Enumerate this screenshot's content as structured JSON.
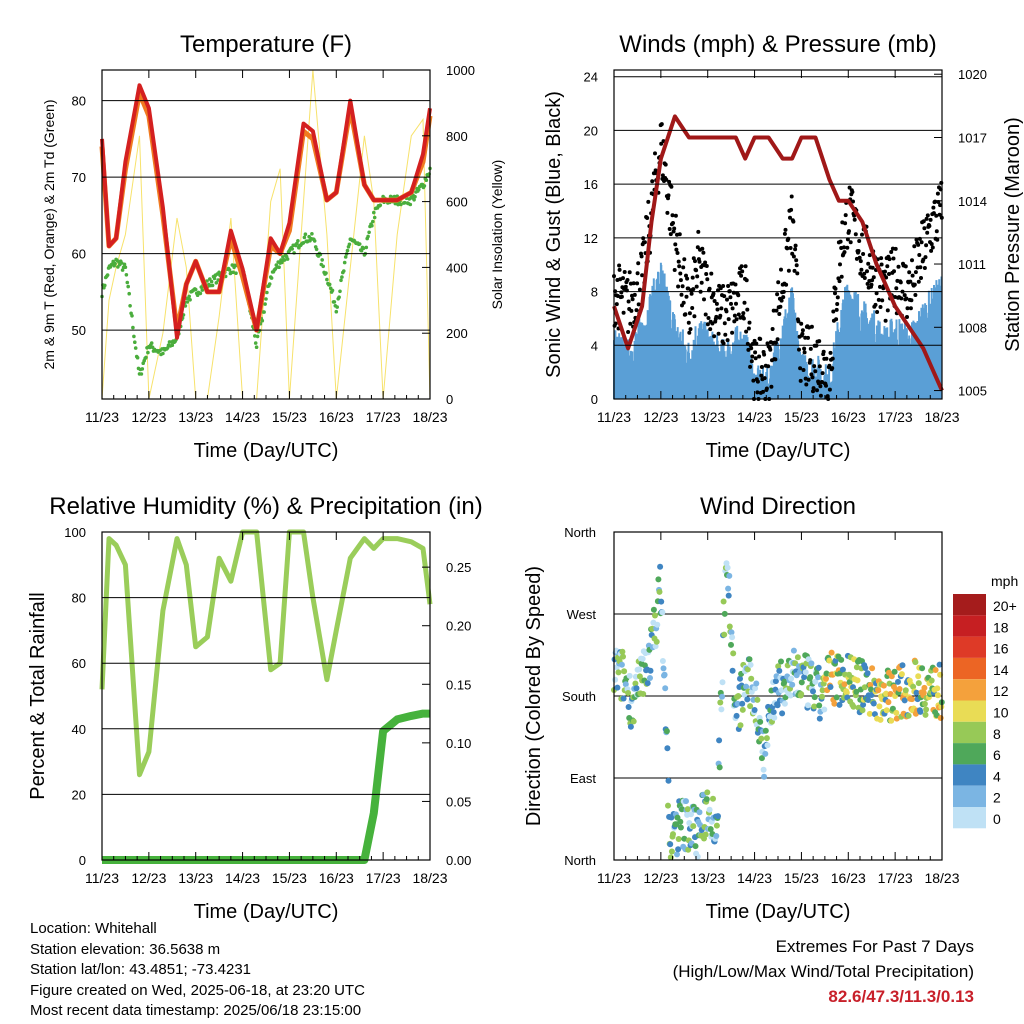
{
  "x_ticks": [
    "11/23",
    "12/23",
    "13/23",
    "14/23",
    "15/23",
    "16/23",
    "17/23",
    "18/23"
  ],
  "x_axis_label": "Time (Day/UTC)",
  "colors": {
    "temp_2m": "#d42020",
    "temp_9m": "#f07a20",
    "dewpoint": "#4aad3c",
    "insolation": "#f7e26b",
    "wind": "#5a9fd6",
    "gust": "#000000",
    "pressure": "#a01818",
    "rh": "#9acd5a",
    "precip": "#46b23c"
  },
  "panels": {
    "temperature": {
      "title": "Temperature (F)",
      "ylabel_left": "2m & 9m T (Red, Orange) & 2m Td (Green)",
      "ylabel_right": "Solar Insolation (Yellow)"
    },
    "winds": {
      "title": "Winds (mph) & Pressure (mb)",
      "ylabel_left": "Sonic Wind & Gust (Blue, Black)",
      "ylabel_right": "Station Pressure (Maroon)"
    },
    "humidity": {
      "title": "Relative Humidity (%) & Precipitation (in)",
      "ylabel_left": "Percent & Total Rainfall"
    },
    "direction": {
      "title": "Wind Direction",
      "ylabel_left": "Direction (Colored By Speed)",
      "legend_unit": "mph",
      "legend_labels": [
        "20+",
        "18",
        "16",
        "14",
        "12",
        "10",
        "8",
        "6",
        "4",
        "2",
        "0"
      ],
      "legend_colors": [
        "#a51c1c",
        "#c61f22",
        "#de3a27",
        "#ec6524",
        "#f4a13c",
        "#e9dc55",
        "#97c957",
        "#4fa85a",
        "#3f85c2",
        "#7bb5e3",
        "#bfe1f5"
      ]
    }
  },
  "chart_data": [
    {
      "type": "line",
      "title": "Temperature (F)",
      "xlabel": "Time (Day/UTC)",
      "ylabel": "2m & 9m T (Red, Orange) & 2m Td (Green)",
      "y2label": "Solar Insolation (Yellow)",
      "x": [
        11,
        11.15,
        11.3,
        11.5,
        11.8,
        12.0,
        12.3,
        12.6,
        12.8,
        13.0,
        13.25,
        13.5,
        13.75,
        14.0,
        14.3,
        14.6,
        14.8,
        15.0,
        15.3,
        15.5,
        15.8,
        16.0,
        16.3,
        16.6,
        16.8,
        17.0,
        17.3,
        17.6,
        17.85,
        18.0
      ],
      "ylim": [
        41,
        84
      ],
      "y2lim": [
        0,
        1000
      ],
      "yticks": [
        50,
        60,
        70,
        80
      ],
      "y2ticks": [
        0,
        200,
        400,
        600,
        800,
        1000
      ],
      "series": [
        {
          "name": "2m T",
          "values": [
            75,
            61,
            62,
            72,
            82,
            79,
            66,
            49,
            56,
            59,
            55,
            55,
            63,
            58,
            50,
            62,
            60,
            64,
            77,
            76,
            67,
            68,
            80,
            69,
            67,
            67,
            67,
            68,
            73,
            79
          ]
        },
        {
          "name": "9m T",
          "values": [
            74,
            61,
            62,
            71,
            81,
            78,
            65,
            50,
            56,
            59,
            55,
            55,
            62,
            57,
            50,
            61,
            60,
            63,
            76,
            75,
            67,
            68,
            79,
            69,
            67,
            67,
            67,
            68,
            72,
            78
          ]
        },
        {
          "name": "2m Td",
          "values": [
            55,
            58,
            59,
            58,
            44,
            48,
            47,
            49,
            54,
            55,
            56,
            57,
            58,
            58,
            48,
            57,
            59,
            60,
            62,
            62,
            57,
            53,
            62,
            60,
            65,
            67,
            67,
            67,
            69,
            71
          ]
        },
        {
          "name": "Solar Insolation",
          "values": [
            0,
            300,
            400,
            500,
            800,
            0,
            200,
            550,
            400,
            0,
            0,
            250,
            550,
            0,
            0,
            600,
            700,
            0,
            600,
            1000,
            500,
            0,
            400,
            800,
            600,
            0,
            500,
            800,
            850,
            0
          ]
        }
      ]
    },
    {
      "type": "line",
      "title": "Winds (mph) & Pressure (mb)",
      "xlabel": "Time (Day/UTC)",
      "ylabel": "Sonic Wind & Gust (Blue, Black)",
      "y2label": "Station Pressure (Maroon)",
      "x": [
        11,
        11.3,
        11.6,
        11.8,
        12.0,
        12.3,
        12.6,
        12.8,
        13.0,
        13.3,
        13.6,
        13.8,
        14.0,
        14.3,
        14.6,
        14.8,
        15.0,
        15.3,
        15.6,
        15.8,
        16.0,
        16.3,
        16.6,
        16.8,
        17.0,
        17.3,
        17.6,
        17.8,
        18.0
      ],
      "ylim": [
        0,
        24.5
      ],
      "y2lim": [
        1004.6,
        1020.2
      ],
      "yticks": [
        0,
        4,
        8,
        12,
        16,
        20,
        24
      ],
      "y2ticks": [
        1005,
        1008,
        1011,
        1014,
        1017,
        1020
      ],
      "series": [
        {
          "name": "Wind",
          "values": [
            4,
            3,
            5,
            7,
            9,
            5,
            3,
            5,
            4,
            3,
            4,
            4,
            1,
            1,
            5,
            7,
            2,
            2,
            1,
            5,
            8,
            6,
            5,
            4,
            5,
            4,
            6,
            7,
            8
          ]
        },
        {
          "name": "Gust",
          "values": [
            8,
            7,
            9,
            14,
            19,
            12,
            6,
            10,
            8,
            6,
            7,
            8,
            2,
            2,
            9,
            13,
            3,
            3,
            2,
            10,
            14,
            11,
            9,
            8,
            9,
            8,
            11,
            13,
            14
          ]
        },
        {
          "name": "Station Pressure",
          "values": [
            1009,
            1007,
            1009,
            1013,
            1016,
            1018,
            1017,
            1017,
            1017,
            1017,
            1017,
            1016,
            1017,
            1017,
            1016,
            1016,
            1017,
            1017,
            1015,
            1014,
            1014,
            1013,
            1011,
            1010,
            1009,
            1008,
            1007,
            1006,
            1005
          ]
        }
      ]
    },
    {
      "type": "line",
      "title": "Relative Humidity (%) & Precipitation (in)",
      "xlabel": "Time (Day/UTC)",
      "ylabel": "Percent & Total Rainfall",
      "x": [
        11,
        11.15,
        11.3,
        11.5,
        11.8,
        12.0,
        12.3,
        12.6,
        12.8,
        13.0,
        13.25,
        13.5,
        13.75,
        14.0,
        14.3,
        14.6,
        14.8,
        15.0,
        15.3,
        15.5,
        15.8,
        16.0,
        16.3,
        16.6,
        16.8,
        17.0,
        17.3,
        17.6,
        17.85,
        18.0
      ],
      "ylim": [
        0,
        100
      ],
      "y2lim": [
        0,
        0.28
      ],
      "yticks": [
        0,
        20,
        40,
        60,
        80,
        100
      ],
      "y2ticks": [
        0,
        0.05,
        0.1,
        0.15,
        0.2,
        0.25
      ],
      "series": [
        {
          "name": "Relative Humidity",
          "values": [
            52,
            98,
            96,
            90,
            26,
            33,
            76,
            98,
            90,
            65,
            68,
            92,
            85,
            100,
            100,
            58,
            60,
            100,
            100,
            80,
            55,
            70,
            92,
            98,
            95,
            98,
            98,
            97,
            95,
            78
          ]
        },
        {
          "name": "Total Precipitation",
          "values": [
            0,
            0,
            0,
            0,
            0,
            0,
            0,
            0,
            0,
            0,
            0,
            0,
            0,
            0,
            0,
            0,
            0,
            0,
            0,
            0,
            0,
            0,
            0,
            0,
            0.04,
            0.11,
            0.12,
            0.123,
            0.125,
            0.125
          ]
        }
      ]
    },
    {
      "type": "scatter",
      "title": "Wind Direction",
      "xlabel": "Time (Day/UTC)",
      "ylabel": "Direction (Colored By Speed)",
      "y_categories": [
        "North",
        "East",
        "South",
        "West",
        "North"
      ],
      "legend_title": "mph",
      "legend": [
        "20+",
        "18",
        "16",
        "14",
        "12",
        "10",
        "8",
        "6",
        "4",
        "2",
        "0"
      ],
      "series": [
        {
          "name": "Direction (deg)",
          "x": [
            11.0,
            11.2,
            11.4,
            11.6,
            11.8,
            12.0,
            12.2,
            12.4,
            12.6,
            12.8,
            13.0,
            13.2,
            13.4,
            13.6,
            13.8,
            14.0,
            14.2,
            14.4,
            14.6,
            14.8,
            15.0,
            15.2,
            15.4,
            15.6,
            15.8,
            16.0,
            16.2,
            16.4,
            16.6,
            16.8,
            17.0,
            17.2,
            17.4,
            17.6,
            17.8,
            18.0
          ],
          "values": [
            210,
            200,
            170,
            200,
            230,
            300,
            20,
            40,
            40,
            30,
            60,
            40,
            350,
            150,
            200,
            180,
            120,
            180,
            190,
            200,
            200,
            190,
            180,
            200,
            200,
            200,
            190,
            190,
            180,
            180,
            185,
            185,
            190,
            190,
            185,
            185
          ]
        }
      ]
    }
  ],
  "info": {
    "location": "Location: Whitehall",
    "elevation": "Station elevation: 36.5638 m",
    "latlon": "Station lat/lon: 43.4851; -73.4231",
    "created": "Figure created on Wed, 2025-06-18, at 23:20 UTC",
    "timestamp": "Most recent data timestamp: 2025/06/18 23:15:00"
  },
  "extremes": {
    "heading": "Extremes For Past 7 Days",
    "subheading": "(High/Low/Max Wind/Total Precipitation)",
    "values": "82.6/47.3/11.3/0.13"
  }
}
